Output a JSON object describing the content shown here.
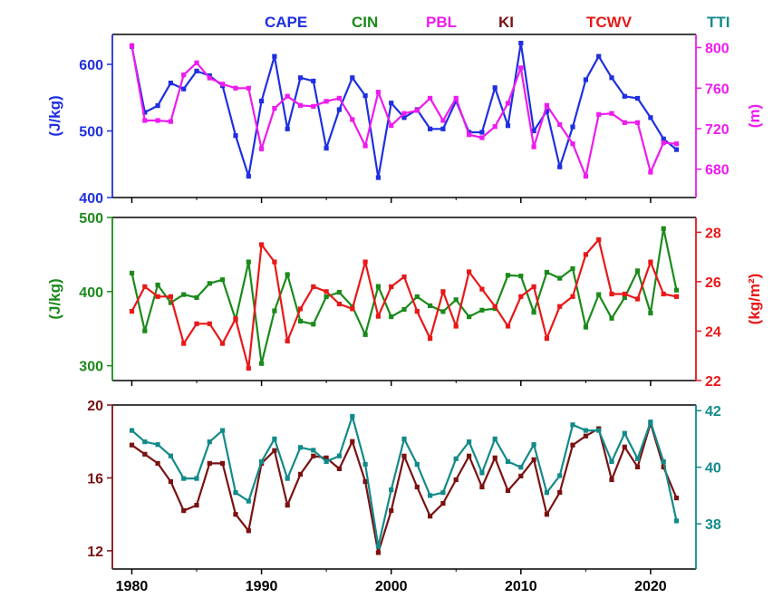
{
  "legend": [
    {
      "label": "CAPE",
      "color": "#1f2fe0"
    },
    {
      "label": "CIN",
      "color": "#1b8a1b"
    },
    {
      "label": "PBL",
      "color": "#ee1bee"
    },
    {
      "label": "KI",
      "color": "#7a1212"
    },
    {
      "label": "TCWV",
      "color": "#e81818"
    },
    {
      "label": "TTI",
      "color": "#138a8a"
    }
  ],
  "chart_data": [
    {
      "type": "line",
      "panel": "top",
      "x": [
        1980,
        1981,
        1982,
        1983,
        1984,
        1985,
        1986,
        1987,
        1988,
        1989,
        1990,
        1991,
        1992,
        1993,
        1994,
        1995,
        1996,
        1997,
        1998,
        1999,
        2000,
        2001,
        2002,
        2003,
        2004,
        2005,
        2006,
        2007,
        2008,
        2009,
        2010,
        2011,
        2012,
        2013,
        2014,
        2015,
        2016,
        2017,
        2018,
        2019,
        2020,
        2021,
        2022
      ],
      "xlim": [
        1978.5,
        2023.5
      ],
      "xticks": [
        "1980",
        "1990",
        "2000",
        "2010",
        "2020"
      ],
      "left_axis": {
        "label": "(J/kg)",
        "ylim": [
          400,
          645
        ],
        "ticks": [
          "400",
          "500",
          "600"
        ],
        "color": "#1f2fe0"
      },
      "right_axis": {
        "label": "(m)",
        "ylim": [
          652,
          813
        ],
        "ticks": [
          "680",
          "720",
          "760",
          "800"
        ],
        "color": "#ee1bee"
      },
      "series": [
        {
          "name": "CAPE",
          "axis": "left",
          "color": "#1f2fe0",
          "values": [
            627,
            528,
            538,
            572,
            563,
            590,
            583,
            568,
            493,
            432,
            545,
            612,
            503,
            580,
            575,
            474,
            532,
            580,
            553,
            430,
            542,
            520,
            532,
            503,
            503,
            545,
            498,
            498,
            565,
            508,
            632,
            500,
            530,
            446,
            506,
            577,
            612,
            580,
            552,
            549,
            520,
            488,
            472
          ]
        },
        {
          "name": "PBL",
          "axis": "left2",
          "color": "#ee1bee",
          "values": [
            802,
            728,
            728,
            727,
            773,
            785,
            770,
            764,
            760,
            760,
            700,
            740,
            752,
            743,
            742,
            747,
            750,
            729,
            703,
            756,
            723,
            735,
            738,
            750,
            728,
            750,
            714,
            711,
            722,
            745,
            780,
            702,
            743,
            724,
            705,
            673,
            734,
            735,
            726,
            726,
            677,
            706,
            705
          ]
        }
      ]
    },
    {
      "type": "line",
      "panel": "middle",
      "x": [
        1980,
        1981,
        1982,
        1983,
        1984,
        1985,
        1986,
        1987,
        1988,
        1989,
        1990,
        1991,
        1992,
        1993,
        1994,
        1995,
        1996,
        1997,
        1998,
        1999,
        2000,
        2001,
        2002,
        2003,
        2004,
        2005,
        2006,
        2007,
        2008,
        2009,
        2010,
        2011,
        2012,
        2013,
        2014,
        2015,
        2016,
        2017,
        2018,
        2019,
        2020,
        2021,
        2022
      ],
      "xlim": [
        1978.5,
        2023.5
      ],
      "xticks": [
        "1980",
        "1990",
        "2000",
        "2010",
        "2020"
      ],
      "left_axis": {
        "label": "(J/kg)",
        "ylim": [
          280,
          500
        ],
        "ticks": [
          "300",
          "400",
          "500"
        ],
        "color": "#1b8a1b"
      },
      "right_axis": {
        "label": "(kg/m²)",
        "ylim": [
          22,
          28.6
        ],
        "ticks": [
          "22",
          "24",
          "26",
          "28"
        ],
        "color": "#e81818"
      },
      "series": [
        {
          "name": "CIN",
          "axis": "left",
          "color": "#1b8a1b",
          "values": [
            425,
            347,
            409,
            385,
            396,
            392,
            411,
            416,
            362,
            440,
            303,
            374,
            423,
            360,
            356,
            393,
            399,
            380,
            342,
            407,
            366,
            376,
            393,
            381,
            373,
            389,
            366,
            375,
            377,
            422,
            421,
            372,
            426,
            418,
            431,
            352,
            396,
            364,
            392,
            428,
            371,
            485,
            402
          ]
        },
        {
          "name": "TCWV",
          "axis": "right",
          "color": "#e81818",
          "values": [
            24.8,
            25.8,
            25.4,
            25.4,
            23.5,
            24.3,
            24.3,
            23.5,
            24.5,
            22.5,
            27.5,
            26.8,
            23.6,
            24.9,
            25.8,
            25.6,
            25.1,
            24.9,
            26.8,
            24.6,
            25.8,
            26.2,
            24.8,
            23.7,
            25.6,
            24.2,
            26.4,
            25.7,
            25.0,
            24.2,
            25.4,
            25.8,
            23.7,
            25.0,
            25.4,
            27.1,
            27.7,
            25.5,
            25.5,
            25.3,
            26.8,
            25.5,
            25.4
          ]
        }
      ]
    },
    {
      "type": "line",
      "panel": "bottom",
      "x": [
        1980,
        1981,
        1982,
        1983,
        1984,
        1985,
        1986,
        1987,
        1988,
        1989,
        1990,
        1991,
        1992,
        1993,
        1994,
        1995,
        1996,
        1997,
        1998,
        1999,
        2000,
        2001,
        2002,
        2003,
        2004,
        2005,
        2006,
        2007,
        2008,
        2009,
        2010,
        2011,
        2012,
        2013,
        2014,
        2015,
        2016,
        2017,
        2018,
        2019,
        2020,
        2021,
        2022
      ],
      "xlim": [
        1978.5,
        2023.5
      ],
      "xticks": [
        "1980",
        "1990",
        "2000",
        "2010",
        "2020"
      ],
      "left_axis": {
        "label": "",
        "ylim": [
          11,
          20
        ],
        "ticks": [
          "12",
          "16",
          "20"
        ],
        "color": "#7a1212"
      },
      "right_axis": {
        "label": "",
        "ylim": [
          36.4,
          42.2
        ],
        "ticks": [
          "38",
          "40",
          "42"
        ],
        "color": "#138a8a"
      },
      "series": [
        {
          "name": "KI",
          "axis": "left",
          "color": "#7a1212",
          "values": [
            17.8,
            17.3,
            16.8,
            15.8,
            14.2,
            14.5,
            16.8,
            16.8,
            14.0,
            13.1,
            16.8,
            17.5,
            14.5,
            16.2,
            17.2,
            17.1,
            16.5,
            18.0,
            15.8,
            11.9,
            14.2,
            17.2,
            15.5,
            13.9,
            14.6,
            15.9,
            17.2,
            15.5,
            17.1,
            15.3,
            16.1,
            17.0,
            14.0,
            15.2,
            17.8,
            18.3,
            18.7,
            15.9,
            17.7,
            16.6,
            19.0,
            16.6,
            14.9
          ]
        },
        {
          "name": "TTI",
          "axis": "right",
          "color": "#138a8a",
          "values": [
            41.3,
            40.9,
            40.8,
            40.4,
            39.6,
            39.6,
            40.9,
            41.3,
            39.1,
            38.8,
            40.2,
            41.0,
            39.6,
            40.7,
            40.6,
            40.2,
            40.4,
            41.8,
            40.1,
            37.2,
            39.2,
            41.0,
            40.1,
            39.0,
            39.1,
            40.3,
            40.9,
            39.8,
            41.0,
            40.2,
            40.0,
            40.8,
            39.1,
            39.7,
            41.5,
            41.3,
            41.3,
            40.2,
            41.2,
            40.3,
            41.6,
            40.2,
            38.1
          ]
        }
      ]
    }
  ]
}
